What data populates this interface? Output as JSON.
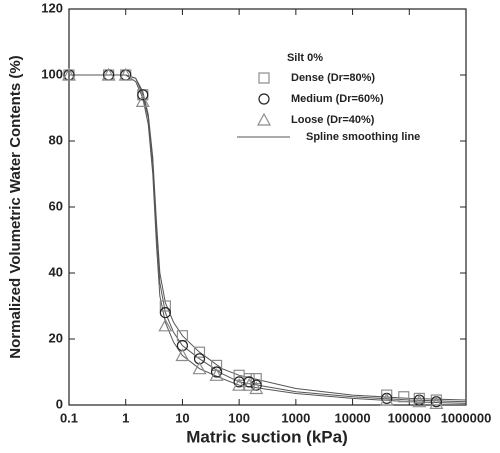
{
  "chart_data": {
    "type": "scatter",
    "xlabel": "Matric suction (kPa)",
    "ylabel": "Normalized Volumetric Water Contents (%)",
    "legend_title": "Silt 0%",
    "legend": "upper right",
    "xscale": "log",
    "xlim": [
      0.1,
      1000000
    ],
    "ylim": [
      0,
      120
    ],
    "xticks": [
      0.1,
      1,
      10,
      100,
      1000,
      10000,
      100000,
      1000000
    ],
    "yticks": [
      0,
      20,
      40,
      60,
      80,
      100,
      120
    ],
    "series": [
      {
        "name": "Dense (Dr=80%)",
        "marker": "square",
        "color": "#8c8c8c",
        "x": [
          0.1,
          0.5,
          1,
          2,
          5,
          10,
          20,
          40,
          100,
          150,
          200,
          40000,
          80000,
          150000,
          300000
        ],
        "values": [
          100,
          100,
          100,
          94,
          30,
          21,
          16,
          12,
          9,
          8,
          8,
          3,
          2.5,
          2,
          1.5
        ]
      },
      {
        "name": "Medium (Dr=60%)",
        "marker": "circle",
        "color": "#222222",
        "x": [
          0.1,
          0.5,
          1,
          2,
          5,
          10,
          20,
          40,
          100,
          150,
          200,
          40000,
          150000,
          300000
        ],
        "values": [
          100,
          100,
          100,
          94,
          28,
          18,
          14,
          10,
          7,
          7,
          6,
          2,
          1.5,
          1
        ]
      },
      {
        "name": "Loose (Dr=40%)",
        "marker": "triangle",
        "color": "#8c8c8c",
        "x": [
          0.1,
          0.5,
          1,
          2,
          5,
          10,
          20,
          40,
          100,
          150,
          200,
          40000,
          150000,
          300000
        ],
        "values": [
          100,
          100,
          100,
          92,
          24,
          15,
          11,
          9,
          6,
          6,
          5,
          1.5,
          1,
          0.5
        ]
      }
    ],
    "line": {
      "name": "Spline smoothing line",
      "color": "#555555",
      "curves": [
        {
          "x": [
            0.1,
            1,
            1.5,
            2,
            2.5,
            3,
            3.5,
            4,
            5,
            7,
            10,
            20,
            50,
            100,
            1000,
            10000,
            100000,
            1000000
          ],
          "values": [
            100,
            100,
            99,
            95,
            88,
            75,
            55,
            40,
            31,
            25,
            21,
            16,
            11,
            9,
            5,
            3,
            2,
            1.5
          ]
        },
        {
          "x": [
            0.1,
            1,
            1.5,
            2,
            2.5,
            3,
            3.5,
            4,
            5,
            7,
            10,
            20,
            50,
            100,
            1000,
            10000,
            100000,
            1000000
          ],
          "values": [
            100,
            100,
            99,
            94,
            87,
            73,
            52,
            37,
            28,
            22,
            18,
            14,
            9.5,
            7,
            4,
            2.5,
            1.5,
            1
          ]
        },
        {
          "x": [
            0.1,
            1,
            1.5,
            2,
            2.5,
            3,
            3.5,
            4,
            5,
            7,
            10,
            20,
            50,
            100,
            1000,
            10000,
            100000,
            1000000
          ],
          "values": [
            100,
            100,
            98,
            93,
            85,
            70,
            48,
            33,
            25,
            19,
            15,
            11,
            8,
            6,
            3.5,
            2,
            1,
            0.5
          ]
        }
      ]
    }
  }
}
